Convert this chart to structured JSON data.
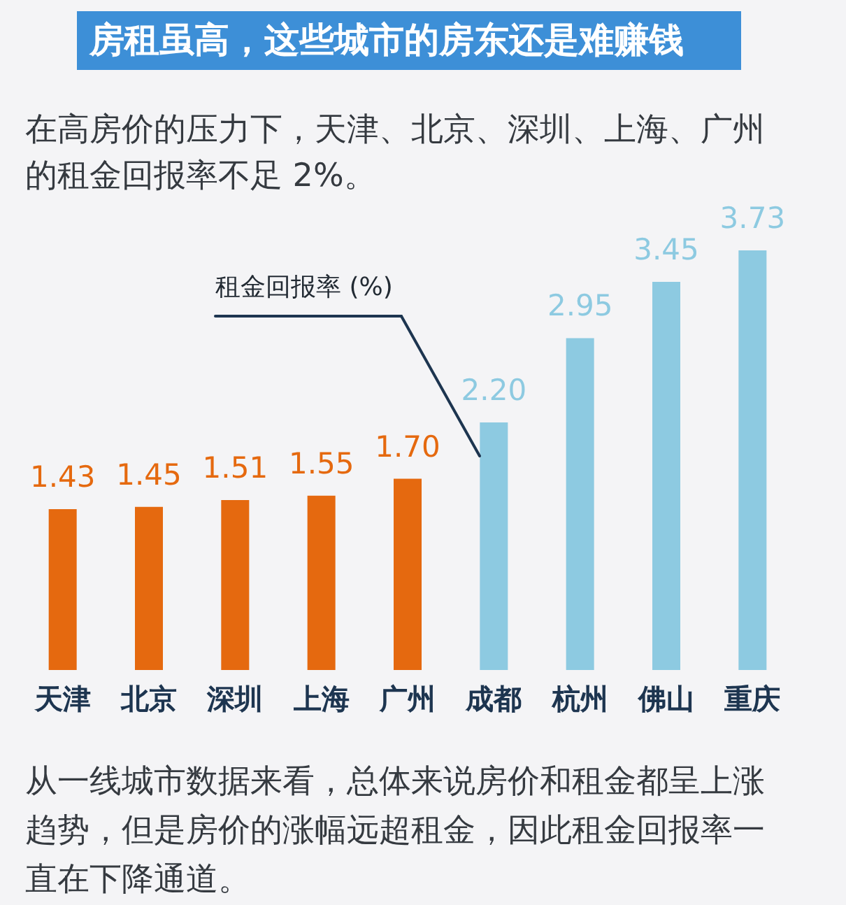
{
  "chart_data": {
    "type": "bar",
    "title": "房租虽高，这些城市的房东还是难赚钱",
    "subtitle": "在高房价的压力下，天津、北京、深圳、上海、广州的租金回报率不足 2%。",
    "ylabel": "租金回报率 (%)",
    "categories": [
      "天津",
      "北京",
      "深圳",
      "上海",
      "广州",
      "成都",
      "杭州",
      "佛山",
      "重庆"
    ],
    "values": [
      1.43,
      1.45,
      1.51,
      1.55,
      1.7,
      2.2,
      2.95,
      3.45,
      3.73
    ],
    "colors": [
      "#e5690f",
      "#e5690f",
      "#e5690f",
      "#e5690f",
      "#e5690f",
      "#8dcae1",
      "#8dcae1",
      "#8dcae1",
      "#8dcae1"
    ],
    "value_labels": [
      "1.43",
      "1.45",
      "1.51",
      "1.55",
      "1.70",
      "2.20",
      "2.95",
      "3.45",
      "3.73"
    ],
    "annotations": [
      "从一线城市数据来看，总体来说房价和租金都呈上涨趋势，但是房价的涨幅远超租金，因此租金回报率一直在下降通道。"
    ]
  }
}
